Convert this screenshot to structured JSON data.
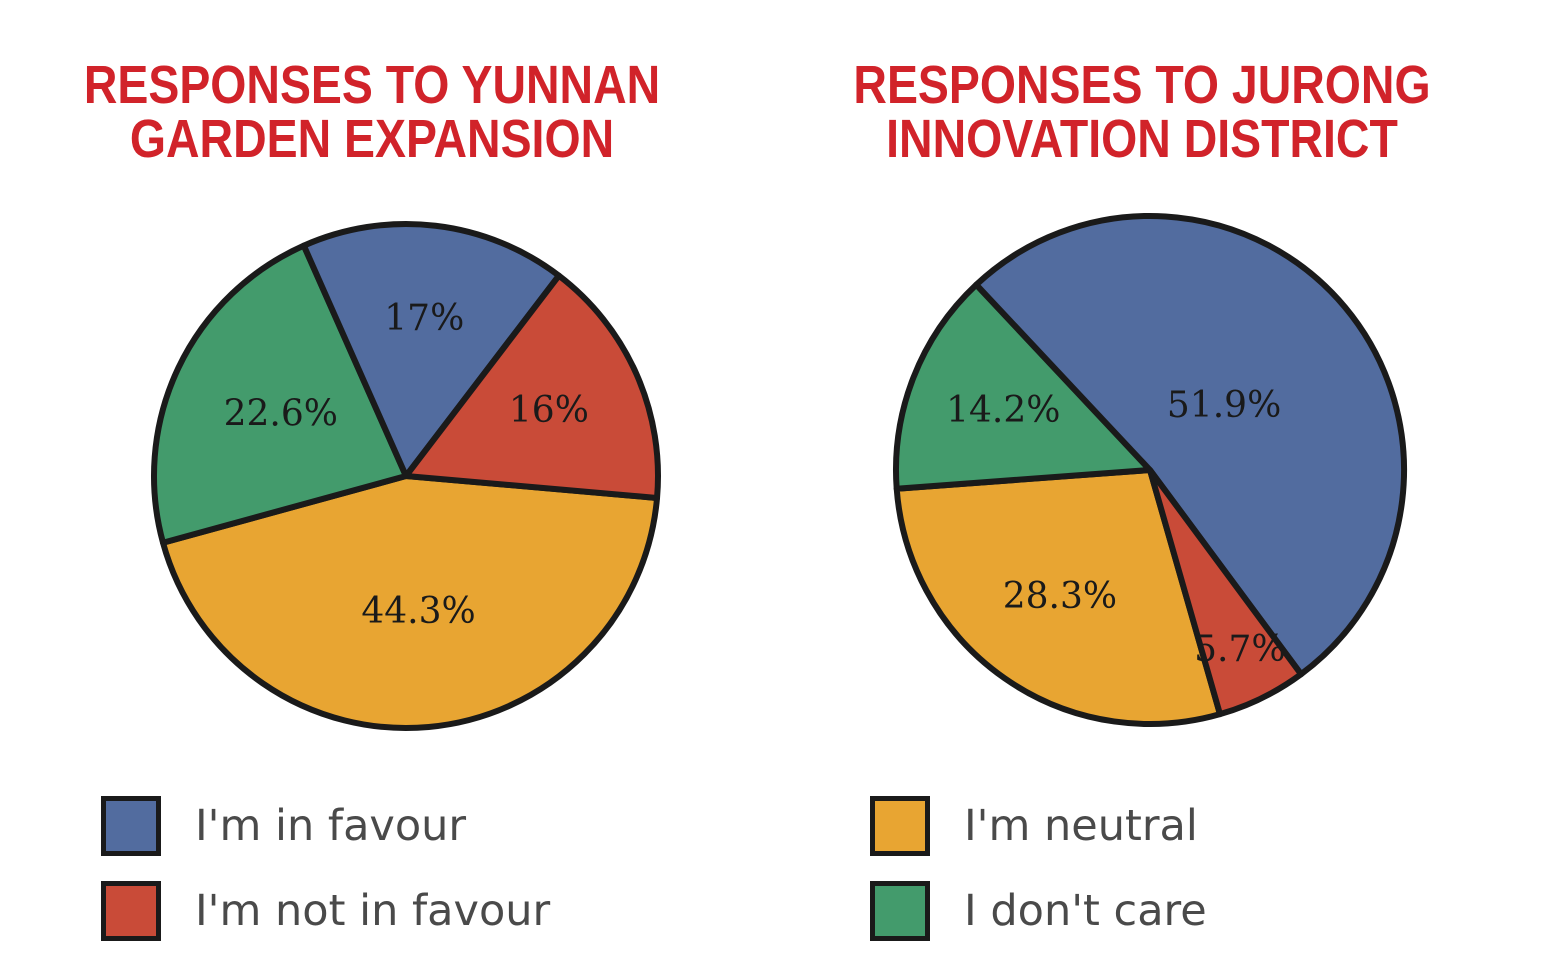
{
  "chart_data": [
    {
      "type": "pie",
      "title_lines": [
        "RESPONSES TO YUNNAN",
        "GARDEN EXPANSION"
      ],
      "slices": [
        {
          "category": "I'm neutral",
          "value": 44.3,
          "label": "44.3%",
          "color": "#e8a532"
        },
        {
          "category": "I don't care",
          "value": 22.6,
          "label": "22.6%",
          "color": "#439b6c"
        },
        {
          "category": "I'm in favour",
          "value": 17.0,
          "label": "17%",
          "color": "#526c9f"
        },
        {
          "category": "I'm not in favour",
          "value": 16.0,
          "label": "16%",
          "color": "#c94b38"
        }
      ]
    },
    {
      "type": "pie",
      "title_lines": [
        "RESPONSES TO JURONG",
        "INNOVATION DISTRICT"
      ],
      "slices": [
        {
          "category": "I'm neutral",
          "value": 28.3,
          "label": "28.3%",
          "color": "#e8a532"
        },
        {
          "category": "I don't care",
          "value": 14.2,
          "label": "14.2%",
          "color": "#439b6c"
        },
        {
          "category": "I'm in favour",
          "value": 51.9,
          "label": "51.9%",
          "color": "#526c9f"
        },
        {
          "category": "I'm not in favour",
          "value": 5.7,
          "label": "5.7%",
          "color": "#c94b38"
        }
      ]
    }
  ],
  "legend": [
    {
      "label": "I'm in favour",
      "color": "#526c9f"
    },
    {
      "label": "I'm not in favour",
      "color": "#c94b38"
    },
    {
      "label": "I'm neutral",
      "color": "#e8a532"
    },
    {
      "label": "I don't care",
      "color": "#439b6c"
    }
  ]
}
